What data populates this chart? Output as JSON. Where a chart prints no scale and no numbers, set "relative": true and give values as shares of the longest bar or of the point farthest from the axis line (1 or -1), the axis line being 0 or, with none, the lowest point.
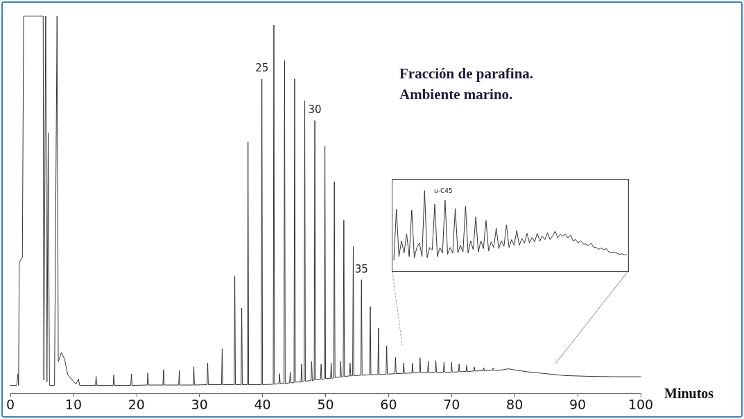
{
  "chart_data": [
    {
      "type": "line",
      "title": "Fracción de parafina.",
      "subtitle": "Ambiente marino.",
      "xlabel": "Minutos",
      "relative": true,
      "color": "#333333",
      "xlim": [
        0,
        100
      ],
      "xticks": [
        0,
        10,
        20,
        30,
        40,
        50,
        60,
        70,
        80,
        90,
        100
      ],
      "x": [
        0,
        1.0,
        1.2,
        1.3,
        1.4,
        1.9,
        2.1,
        5.2,
        5.3,
        5.6,
        5.8,
        6.0,
        6.2,
        7.0,
        7.4,
        7.6,
        8.1,
        8.6,
        9.1,
        10.4,
        10.8,
        11.0,
        13.5,
        13.6,
        13.7,
        16.3,
        16.4,
        16.5,
        19.1,
        19.2,
        19.3,
        21.7,
        21.8,
        21.9,
        24.2,
        24.3,
        24.4,
        26.7,
        26.8,
        26.9,
        29.0,
        29.1,
        29.2,
        31.2,
        31.3,
        31.4,
        33.5,
        33.6,
        33.7,
        35.5,
        35.6,
        35.7,
        36.6,
        36.7,
        36.8,
        37.6,
        37.7,
        37.8,
        39.8,
        39.9,
        40.0,
        41.7,
        41.8,
        41.9,
        42.6,
        42.7,
        42.8,
        43.4,
        43.5,
        43.6,
        44.3,
        44.4,
        44.5,
        45.0,
        45.1,
        45.2,
        46.1,
        46.2,
        46.3,
        46.6,
        46.7,
        46.8,
        47.7,
        47.8,
        47.9,
        48.2,
        48.3,
        48.4,
        49.2,
        49.3,
        49.4,
        49.8,
        49.9,
        50.0,
        50.8,
        50.9,
        51.0,
        51.3,
        51.4,
        51.5,
        52.3,
        52.4,
        52.5,
        52.8,
        52.9,
        53.0,
        53.8,
        53.9,
        54.0,
        54.3,
        54.4,
        54.5,
        55.6,
        55.7,
        55.8,
        57.0,
        57.1,
        57.2,
        58.3,
        58.4,
        58.5,
        59.6,
        59.7,
        59.8,
        61.0,
        61.1,
        61.2,
        62.3,
        62.4,
        62.5,
        63.7,
        63.8,
        63.9,
        64.9,
        65.0,
        65.1,
        66.2,
        66.3,
        66.4,
        67.4,
        67.5,
        67.6,
        68.7,
        68.8,
        68.9,
        69.9,
        70.0,
        70.1,
        71.1,
        71.2,
        71.3,
        72.3,
        72.4,
        72.5,
        73.5,
        73.6,
        73.7,
        75.0,
        75.1,
        75.2,
        76.5,
        76.6,
        76.7,
        78,
        79,
        80,
        82,
        85,
        88,
        92,
        96,
        100
      ],
      "values": [
        0.021,
        0.021,
        0.052,
        0.021,
        0.348,
        0.36,
        1.0,
        1.0,
        0.035,
        1.0,
        0.03,
        0.69,
        0.021,
        0.021,
        1.0,
        0.084,
        0.108,
        0.09,
        0.049,
        0.024,
        0.038,
        0.021,
        0.021,
        0.045,
        0.021,
        0.021,
        0.049,
        0.021,
        0.021,
        0.051,
        0.021,
        0.022,
        0.054,
        0.022,
        0.022,
        0.063,
        0.022,
        0.022,
        0.061,
        0.022,
        0.022,
        0.07,
        0.022,
        0.023,
        0.08,
        0.023,
        0.023,
        0.118,
        0.023,
        0.023,
        0.31,
        0.023,
        0.023,
        0.226,
        0.023,
        0.023,
        0.666,
        0.023,
        0.023,
        0.833,
        0.023,
        0.024,
        0.976,
        0.024,
        0.026,
        0.052,
        0.026,
        0.026,
        0.882,
        0.026,
        0.028,
        0.056,
        0.028,
        0.028,
        0.833,
        0.03,
        0.03,
        0.077,
        0.03,
        0.032,
        0.775,
        0.032,
        0.034,
        0.084,
        0.034,
        0.035,
        0.723,
        0.036,
        0.037,
        0.077,
        0.037,
        0.038,
        0.655,
        0.039,
        0.04,
        0.08,
        0.04,
        0.041,
        0.561,
        0.042,
        0.043,
        0.085,
        0.043,
        0.044,
        0.459,
        0.045,
        0.046,
        0.08,
        0.046,
        0.047,
        0.389,
        0.047,
        0.048,
        0.301,
        0.048,
        0.049,
        0.23,
        0.049,
        0.05,
        0.173,
        0.05,
        0.05,
        0.125,
        0.051,
        0.052,
        0.095,
        0.052,
        0.053,
        0.08,
        0.053,
        0.054,
        0.08,
        0.054,
        0.055,
        0.094,
        0.055,
        0.055,
        0.085,
        0.055,
        0.056,
        0.087,
        0.056,
        0.056,
        0.082,
        0.056,
        0.056,
        0.082,
        0.056,
        0.057,
        0.077,
        0.057,
        0.058,
        0.074,
        0.058,
        0.059,
        0.07,
        0.059,
        0.06,
        0.068,
        0.06,
        0.061,
        0.067,
        0.061,
        0.062,
        0.065,
        0.062,
        0.057,
        0.052,
        0.047,
        0.045,
        0.044,
        0.044
      ],
      "annotations": [
        {
          "text": "25",
          "x": 39.9,
          "y": 0.833
        },
        {
          "text": "30",
          "x": 48.3,
          "y": 0.723
        },
        {
          "text": "35",
          "x": 55.7,
          "y": 0.301
        }
      ]
    },
    {
      "type": "line",
      "relative": true,
      "color": "#333333",
      "tick_labels": false,
      "categories": [
        null,
        null,
        null,
        null,
        null,
        null,
        null,
        null,
        null,
        null,
        null,
        null,
        null,
        null,
        null,
        null,
        null,
        null,
        null,
        null,
        null,
        null,
        null,
        null,
        null,
        null,
        null,
        null,
        null,
        null,
        null,
        null,
        null,
        null,
        null,
        null,
        null,
        null,
        null,
        null,
        null,
        null,
        null,
        null,
        null,
        null,
        null,
        null,
        null,
        null,
        null,
        null,
        null,
        null,
        null,
        null,
        null,
        null,
        null,
        null,
        null,
        null,
        null,
        null,
        null,
        null,
        null,
        null,
        null,
        null,
        null,
        null,
        null,
        null,
        null,
        null,
        null,
        null,
        null,
        null,
        null,
        null,
        null,
        null,
        null,
        null,
        null,
        null,
        null,
        null,
        null,
        null
      ],
      "values": [
        0.14,
        0.77,
        0.182,
        0.378,
        0.224,
        0.462,
        0.182,
        0.756,
        0.168,
        0.294,
        0.35,
        0.182,
        1.0,
        0.168,
        0.294,
        0.266,
        0.832,
        0.182,
        0.294,
        0.224,
        0.882,
        0.21,
        0.294,
        0.224,
        0.776,
        0.224,
        0.322,
        0.238,
        0.804,
        0.224,
        0.378,
        0.266,
        0.672,
        0.238,
        0.378,
        0.28,
        0.63,
        0.252,
        0.364,
        0.294,
        0.532,
        0.28,
        0.378,
        0.308,
        0.574,
        0.294,
        0.392,
        0.322,
        0.504,
        0.322,
        0.406,
        0.35,
        0.468,
        0.35,
        0.42,
        0.364,
        0.468,
        0.373,
        0.434,
        0.392,
        0.476,
        0.392,
        0.434,
        0.496,
        0.412,
        0.457,
        0.434,
        0.462,
        0.412,
        0.448,
        0.378,
        0.392,
        0.35,
        0.378,
        0.336,
        0.336,
        0.317,
        0.35,
        0.3,
        0.294,
        0.272,
        0.289,
        0.266,
        0.28,
        0.238,
        0.232,
        0.238,
        0.224,
        0.21,
        0.216,
        0.204,
        0.204
      ],
      "annotations": [
        "u-C45"
      ]
    }
  ]
}
